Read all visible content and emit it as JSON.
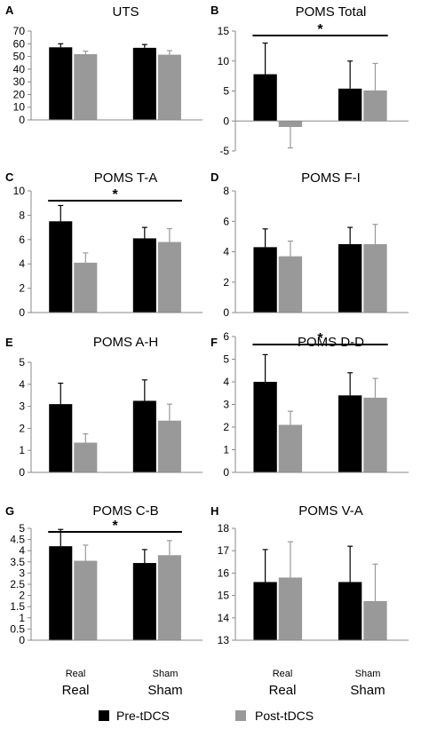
{
  "figure": {
    "group_labels_small": [
      "Real",
      "Sham"
    ],
    "group_labels_large": [
      "Real",
      "Sham"
    ],
    "legend": [
      {
        "label": "Pre-tDCS",
        "color": "#000000"
      },
      {
        "label": "Post-tDCS",
        "color": "#999999"
      }
    ]
  },
  "chart_data": [
    {
      "type": "bar",
      "panel": "A",
      "title": "UTS",
      "ylim": [
        0,
        70
      ],
      "yticks": [
        0,
        10,
        20,
        30,
        40,
        50,
        60,
        70
      ],
      "categories": [
        "Real",
        "Sham"
      ],
      "series": [
        {
          "name": "Pre-tDCS",
          "color": "#000000",
          "values": [
            57.2,
            56.8
          ],
          "errors": [
            2.8,
            2.6
          ]
        },
        {
          "name": "Post-tDCS",
          "color": "#999999",
          "values": [
            51.8,
            51.4
          ],
          "errors": [
            2.4,
            3.2
          ]
        }
      ],
      "significance": null
    },
    {
      "type": "bar",
      "panel": "B",
      "title": "POMS Total",
      "ylim": [
        -5,
        15
      ],
      "yticks": [
        -5,
        0,
        5,
        10,
        15
      ],
      "categories": [
        "Real",
        "Sham"
      ],
      "series": [
        {
          "name": "Pre-tDCS",
          "color": "#000000",
          "values": [
            7.8,
            5.4
          ],
          "errors": [
            5.2,
            4.6
          ]
        },
        {
          "name": "Post-tDCS",
          "color": "#999999",
          "values": [
            -1.0,
            5.1
          ],
          "errors": [
            3.5,
            4.5
          ]
        }
      ],
      "significance": "*"
    },
    {
      "type": "bar",
      "panel": "C",
      "title": "POMS T-A",
      "ylim": [
        0,
        10
      ],
      "yticks": [
        0,
        2,
        4,
        6,
        8,
        10
      ],
      "categories": [
        "Real",
        "Sham"
      ],
      "series": [
        {
          "name": "Pre-tDCS",
          "color": "#000000",
          "values": [
            7.5,
            6.1
          ],
          "errors": [
            1.3,
            0.9
          ]
        },
        {
          "name": "Post-tDCS",
          "color": "#999999",
          "values": [
            4.1,
            5.8
          ],
          "errors": [
            0.8,
            1.1
          ]
        }
      ],
      "significance": "*"
    },
    {
      "type": "bar",
      "panel": "D",
      "title": "POMS F-I",
      "ylim": [
        0,
        8
      ],
      "yticks": [
        0,
        2,
        4,
        6,
        8
      ],
      "categories": [
        "Real",
        "Sham"
      ],
      "series": [
        {
          "name": "Pre-tDCS",
          "color": "#000000",
          "values": [
            4.3,
            4.5
          ],
          "errors": [
            1.2,
            1.1
          ]
        },
        {
          "name": "Post-tDCS",
          "color": "#999999",
          "values": [
            3.7,
            4.5
          ],
          "errors": [
            1.0,
            1.3
          ]
        }
      ],
      "significance": null
    },
    {
      "type": "bar",
      "panel": "E",
      "title": "POMS A-H",
      "ylim": [
        0,
        5
      ],
      "yticks": [
        0,
        1,
        2,
        3,
        4,
        5
      ],
      "categories": [
        "Real",
        "Sham"
      ],
      "series": [
        {
          "name": "Pre-tDCS",
          "color": "#000000",
          "values": [
            3.1,
            3.25
          ],
          "errors": [
            0.95,
            0.95
          ]
        },
        {
          "name": "Post-tDCS",
          "color": "#999999",
          "values": [
            1.35,
            2.35
          ],
          "errors": [
            0.4,
            0.75
          ]
        }
      ],
      "significance": null
    },
    {
      "type": "bar",
      "panel": "F",
      "title": "POMS D-D",
      "ylim": [
        0,
        6
      ],
      "yticks": [
        0,
        1,
        2,
        3,
        4,
        5,
        6
      ],
      "categories": [
        "Real",
        "Sham"
      ],
      "series": [
        {
          "name": "Pre-tDCS",
          "color": "#000000",
          "values": [
            4.0,
            3.4
          ],
          "errors": [
            1.2,
            1.0
          ]
        },
        {
          "name": "Post-tDCS",
          "color": "#999999",
          "values": [
            2.1,
            3.3
          ],
          "errors": [
            0.6,
            0.85
          ]
        }
      ],
      "significance": "*"
    },
    {
      "type": "bar",
      "panel": "G",
      "title": "POMS C-B",
      "ylim": [
        0,
        5
      ],
      "yticks": [
        0,
        0.5,
        1,
        1.5,
        2,
        2.5,
        3,
        3.5,
        4,
        4.5,
        5
      ],
      "categories": [
        "Real",
        "Sham"
      ],
      "series": [
        {
          "name": "Pre-tDCS",
          "color": "#000000",
          "values": [
            4.2,
            3.45
          ],
          "errors": [
            0.75,
            0.6
          ]
        },
        {
          "name": "Post-tDCS",
          "color": "#999999",
          "values": [
            3.55,
            3.8
          ],
          "errors": [
            0.7,
            0.65
          ]
        }
      ],
      "significance": "*"
    },
    {
      "type": "bar",
      "panel": "H",
      "title": "POMS V-A",
      "ylim": [
        13,
        18
      ],
      "yticks": [
        13,
        14,
        15,
        16,
        17,
        18
      ],
      "categories": [
        "Real",
        "Sham"
      ],
      "series": [
        {
          "name": "Pre-tDCS",
          "color": "#000000",
          "values": [
            15.6,
            15.6
          ],
          "errors": [
            1.45,
            1.6
          ]
        },
        {
          "name": "Post-tDCS",
          "color": "#999999",
          "values": [
            15.8,
            14.75
          ],
          "errors": [
            1.6,
            1.65
          ]
        }
      ],
      "significance": null
    }
  ]
}
